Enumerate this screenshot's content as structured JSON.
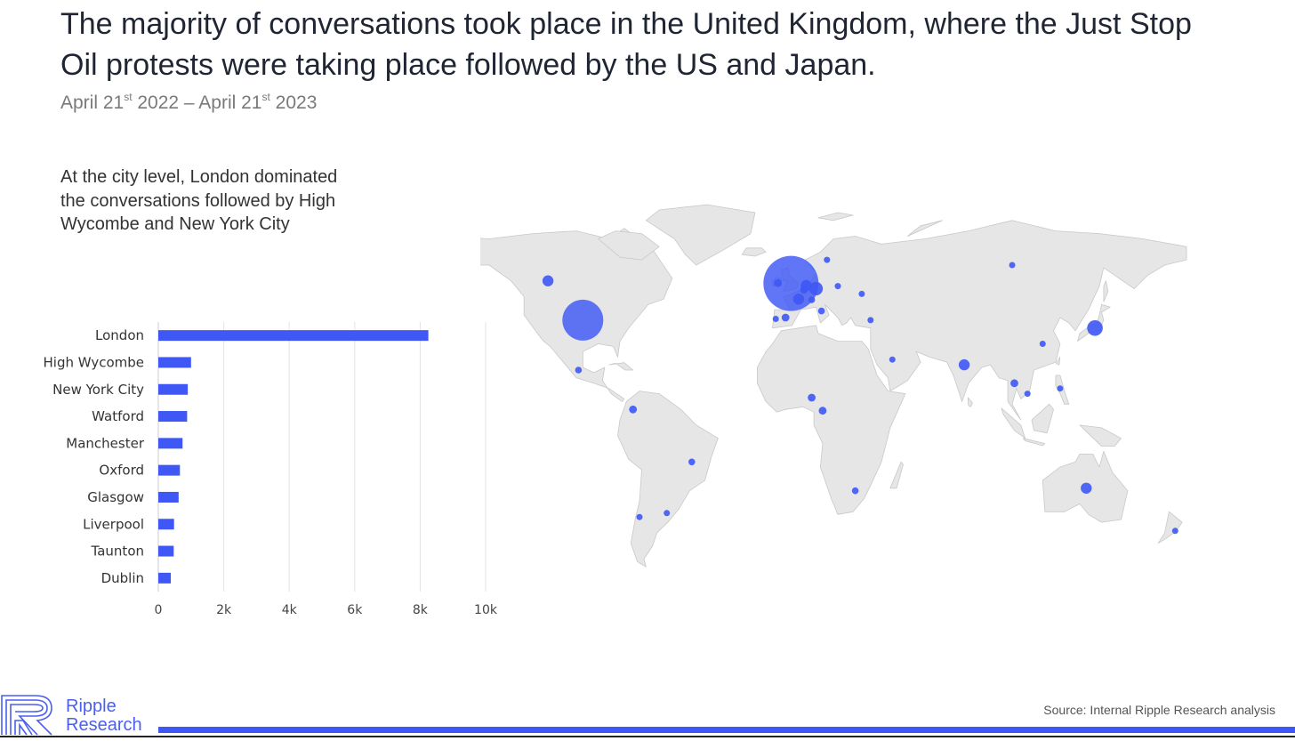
{
  "header": {
    "title": "The majority of conversations took place in the United Kingdom, where the Just Stop Oil protests were taking place followed by the US and Japan.",
    "date_start_a": "April 21",
    "date_start_sup": "st",
    "date_start_b": " 2022 – April 21",
    "date_end_sup": "st",
    "date_end_b": " 2023"
  },
  "note": "At the city level, London dominated the conversations followed by High Wycombe and New York City",
  "chart_data": [
    {
      "type": "bar",
      "orientation": "horizontal",
      "categories": [
        "London",
        "High Wycombe",
        "New York City",
        "Watford",
        "Manchester",
        "Oxford",
        "Glasgow",
        "Liverpool",
        "Taunton",
        "Dublin"
      ],
      "values": [
        8250,
        1000,
        900,
        880,
        740,
        660,
        620,
        480,
        470,
        380
      ],
      "xlim": [
        0,
        10000
      ],
      "xticks": [
        0,
        2000,
        4000,
        6000,
        8000,
        10000
      ],
      "xtick_labels": [
        "0",
        "2k",
        "4k",
        "6k",
        "8k",
        "10k"
      ],
      "grid": true,
      "bar_color": "#3e57f5"
    },
    {
      "type": "bubble-map",
      "bubble_color": "#3e57f5",
      "relative_values": [
        {
          "location": "United Kingdom",
          "lon": -1.5,
          "lat": 53.0,
          "value": 100
        },
        {
          "location": "United States",
          "lon": -97.0,
          "lat": 39.0,
          "value": 55
        },
        {
          "location": "Canada (West)",
          "lon": -113.0,
          "lat": 54.0,
          "value": 4
        },
        {
          "location": "Mexico",
          "lon": -99.0,
          "lat": 20.0,
          "value": 1.5
        },
        {
          "location": "Portugal",
          "lon": -8.5,
          "lat": 39.5,
          "value": 1
        },
        {
          "location": "Spain",
          "lon": -4.0,
          "lat": 40.0,
          "value": 2
        },
        {
          "location": "Ireland",
          "lon": -7.5,
          "lat": 53.2,
          "value": 2
        },
        {
          "location": "France",
          "lon": 2.0,
          "lat": 47.0,
          "value": 4
        },
        {
          "location": "Belgium",
          "lon": 4.5,
          "lat": 50.6,
          "value": 2
        },
        {
          "location": "Netherlands",
          "lon": 5.5,
          "lat": 52.2,
          "value": 4
        },
        {
          "location": "Germany",
          "lon": 10.0,
          "lat": 51.0,
          "value": 6
        },
        {
          "location": "Switzerland",
          "lon": 8.0,
          "lat": 46.8,
          "value": 1.5
        },
        {
          "location": "Italy",
          "lon": 12.5,
          "lat": 42.5,
          "value": 1.5
        },
        {
          "location": "Poland",
          "lon": 20.0,
          "lat": 52.0,
          "value": 1
        },
        {
          "location": "Ukraine",
          "lon": 31.0,
          "lat": 49.0,
          "value": 1
        },
        {
          "location": "Sweden",
          "lon": 15.0,
          "lat": 62.0,
          "value": 1
        },
        {
          "location": "Turkey",
          "lon": 35.0,
          "lat": 39.0,
          "value": 1
        },
        {
          "location": "Russia",
          "lon": 100.0,
          "lat": 60.0,
          "value": 1
        },
        {
          "location": "Saudi Arabia",
          "lon": 45.0,
          "lat": 24.0,
          "value": 1
        },
        {
          "location": "India",
          "lon": 78.0,
          "lat": 22.0,
          "value": 4
        },
        {
          "location": "China",
          "lon": 114.0,
          "lat": 30.0,
          "value": 1
        },
        {
          "location": "Japan",
          "lon": 138.0,
          "lat": 36.0,
          "value": 8
        },
        {
          "location": "Thailand",
          "lon": 101.0,
          "lat": 15.0,
          "value": 2
        },
        {
          "location": "Vietnam",
          "lon": 107.0,
          "lat": 11.0,
          "value": 1
        },
        {
          "location": "Philippines",
          "lon": 122.0,
          "lat": 13.0,
          "value": 1
        },
        {
          "location": "Nigeria",
          "lon": 8.0,
          "lat": 9.5,
          "value": 2
        },
        {
          "location": "Cameroon",
          "lon": 13.0,
          "lat": 4.5,
          "value": 2
        },
        {
          "location": "South Africa",
          "lon": 28.0,
          "lat": -26.0,
          "value": 1.5
        },
        {
          "location": "Colombia",
          "lon": -74.0,
          "lat": 5.0,
          "value": 2
        },
        {
          "location": "Brazil",
          "lon": -47.0,
          "lat": -15.0,
          "value": 1.5
        },
        {
          "location": "Argentina",
          "lon": -58.5,
          "lat": -34.5,
          "value": 1
        },
        {
          "location": "Chile",
          "lon": -71.0,
          "lat": -36.0,
          "value": 1
        },
        {
          "location": "Australia",
          "lon": 134.0,
          "lat": -25.0,
          "value": 4
        },
        {
          "location": "New Zealand",
          "lon": 174.8,
          "lat": -41.3,
          "value": 1
        }
      ]
    }
  ],
  "source": "Source: Internal Ripple Research analysis",
  "logo": {
    "line1": "Ripple",
    "line2": "Research",
    "color": "#4a5ff0"
  }
}
